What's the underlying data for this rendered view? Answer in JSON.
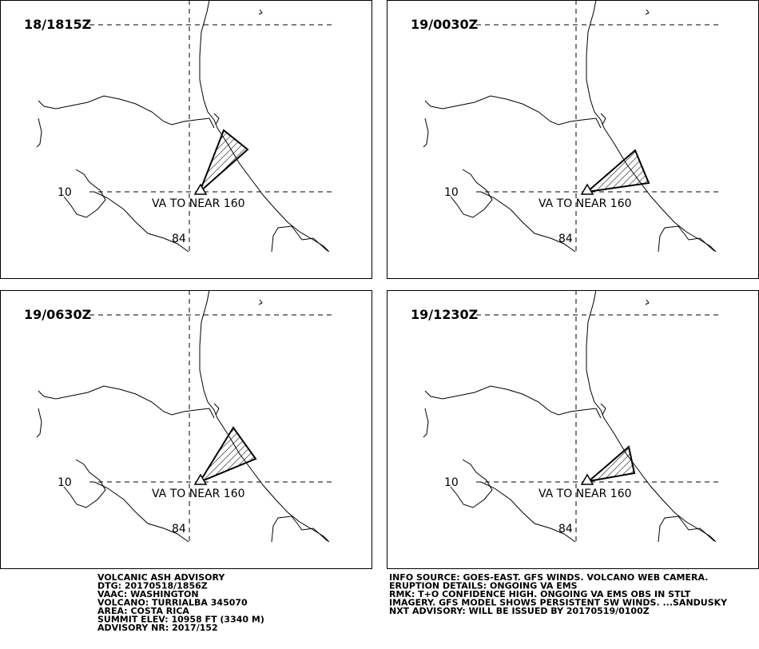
{
  "panels": [
    {
      "time": "18/1815Z",
      "lat_label": "10",
      "lon_label": "84",
      "ash_label": "VA TO NEAR 160"
    },
    {
      "time": "19/0030Z",
      "lat_label": "10",
      "lon_label": "84",
      "ash_label": "VA TO NEAR 160"
    },
    {
      "time": "19/0630Z",
      "lat_label": "10",
      "lon_label": "84",
      "ash_label": "VA TO NEAR 160"
    },
    {
      "time": "19/1230Z",
      "lat_label": "10",
      "lon_label": "84",
      "ash_label": "VA TO NEAR 160"
    }
  ],
  "advisory_left": [
    "VOLCANIC ASH ADVISORY",
    "DTG: 20170518/1856Z",
    "VAAC: WASHINGTON",
    "VOLCANO: TURRIALBA 345070",
    "AREA: COSTA RICA",
    "SUMMIT ELEV: 10958 FT (3340 M)",
    "ADVISORY NR: 2017/152"
  ],
  "advisory_right": [
    "INFO SOURCE: GOES-EAST. GFS WINDS. VOLCANO WEB CAMERA.",
    "ERUPTION DETAILS: ONGOING VA EMS",
    "RMK: T+O CONFIDENCE HIGH. ONGOING VA EMS OBS IN STLT",
    "IMAGERY. GFS MODEL SHOWS PERSISTENT SW WINDS. ...SANDUSKY",
    "NXT ADVISORY: WILL BE ISSUED BY 20170519/0100Z"
  ]
}
